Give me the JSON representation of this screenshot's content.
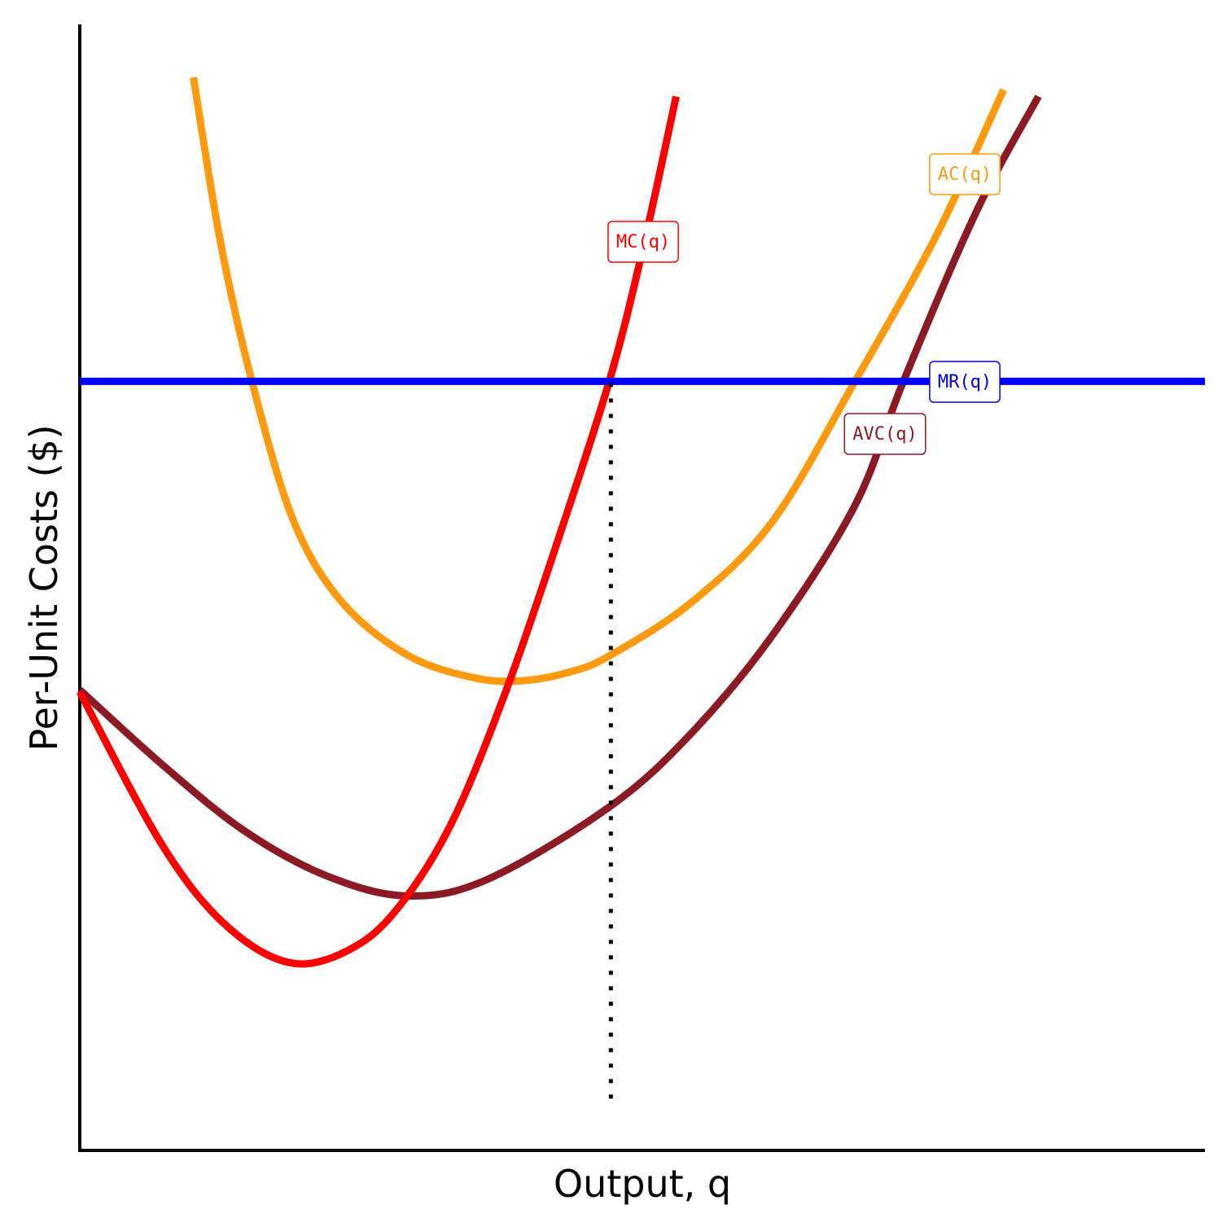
{
  "chart_data": {
    "type": "line",
    "xlabel": "Output, q",
    "ylabel": "Per-Unit Costs ($)",
    "xlim": [
      0,
      10
    ],
    "ylim": [
      0,
      10
    ],
    "series": [
      {
        "name": "MC(q)",
        "color": "#ff0000",
        "x": [
          0,
          0.74,
          1.32,
          1.91,
          2.48,
          2.91,
          3.34,
          3.81,
          4.28,
          4.72,
          5.01,
          5.3
        ],
        "values": [
          4.07,
          2.7,
          1.98,
          1.66,
          1.83,
          2.26,
          2.98,
          4.14,
          5.51,
          6.88,
          8.03,
          9.36
        ]
      },
      {
        "name": "AC(q)",
        "color": "#ff9a0e",
        "x": [
          1.01,
          1.25,
          1.53,
          1.9,
          2.33,
          2.91,
          3.49,
          3.92,
          4.36,
          4.72,
          5.44,
          6.16,
          6.89,
          7.61,
          8.21
        ],
        "values": [
          9.53,
          8.07,
          6.83,
          5.59,
          4.87,
          4.4,
          4.2,
          4.17,
          4.25,
          4.4,
          4.87,
          5.59,
          6.83,
          8.12,
          9.42
        ]
      },
      {
        "name": "MR(q)",
        "color": "#0000ff",
        "x": [
          0,
          10
        ],
        "values": [
          6.83,
          6.83
        ]
      },
      {
        "name": "AVC(q)",
        "color": "#8b1a24",
        "x": [
          0,
          0.74,
          1.46,
          2.19,
          2.91,
          3.63,
          4.72,
          5.44,
          6.16,
          6.89,
          7.32,
          7.97,
          8.52
        ],
        "values": [
          4.09,
          3.42,
          2.84,
          2.44,
          2.26,
          2.41,
          3.06,
          3.71,
          4.58,
          5.73,
          6.83,
          8.34,
          9.36
        ]
      }
    ],
    "q_star_line": {
      "x": 4.72,
      "y": [
        0.46,
        6.83
      ]
    }
  }
}
